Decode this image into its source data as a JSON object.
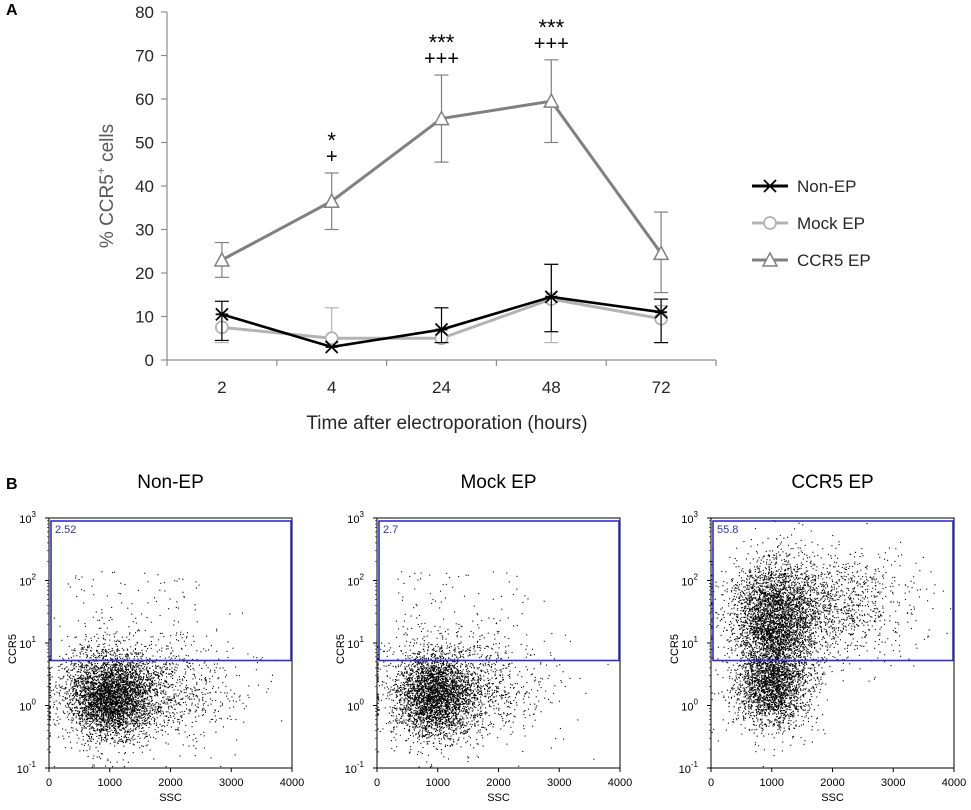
{
  "panel_a_label": "A",
  "panel_b_label": "B",
  "colors": {
    "non_ep": "#000000",
    "mock_ep": "#b3b3b3",
    "ccr5_ep": "#808080",
    "axis": "#8c8c8c",
    "gate": "#2e2ed6",
    "dots": "#000000"
  },
  "chart_data": [
    {
      "type": "line",
      "title": "",
      "xlabel": "Time after electroporation (hours)",
      "ylabel_prefix": "% CCR5",
      "ylabel_sup": "+",
      "ylabel_suffix": " cells",
      "categories": [
        "2",
        "4",
        "24",
        "48",
        "72"
      ],
      "ylim": [
        0,
        80
      ],
      "yticks": [
        0,
        10,
        20,
        30,
        40,
        50,
        60,
        70,
        80
      ],
      "grid": false,
      "legend_position": "right",
      "series": [
        {
          "name": "Non-EP",
          "marker": "asterisk",
          "color_key": "non_ep",
          "values": [
            10.5,
            3.0,
            7.0,
            14.5,
            11.0
          ],
          "error_low": [
            6.0,
            0,
            3.0,
            8.0,
            7.0
          ],
          "error_high": [
            3.0,
            0,
            5.0,
            7.5,
            3.0
          ]
        },
        {
          "name": "Mock EP",
          "marker": "circle",
          "color_key": "mock_ep",
          "values": [
            7.5,
            5.0,
            5.0,
            14.0,
            9.5
          ],
          "error_low": [
            3.5,
            1.0,
            0,
            10.0,
            5.5
          ],
          "error_high": [
            3.0,
            7.0,
            0,
            8.0,
            3.0
          ]
        },
        {
          "name": "CCR5 EP",
          "marker": "triangle",
          "color_key": "ccr5_ep",
          "values": [
            23.0,
            36.5,
            55.5,
            59.5,
            24.5
          ],
          "error_low": [
            4.0,
            6.5,
            10.0,
            9.5,
            9.0
          ],
          "error_high": [
            4.0,
            6.5,
            10.0,
            9.5,
            9.5
          ]
        }
      ],
      "annotations": [
        {
          "category": "4",
          "lines": [
            "*",
            "+"
          ]
        },
        {
          "category": "24",
          "lines": [
            "***",
            "+++"
          ]
        },
        {
          "category": "48",
          "lines": [
            "***",
            "+++"
          ]
        }
      ]
    },
    {
      "type": "scatter",
      "title": "Non-EP",
      "xlabel": "SSC",
      "ylabel": "CCR5",
      "xlim": [
        0,
        4000
      ],
      "xticks": [
        "0",
        "1000",
        "2000",
        "3000",
        "4000"
      ],
      "y_scale": "log",
      "ylim_log10": [
        -1,
        3
      ],
      "yticks_base": "10",
      "yticks_exp": [
        "-1",
        "0",
        "1",
        "2",
        "3"
      ],
      "gate": {
        "label": "2.52",
        "ssc_min": 0,
        "ssc_max": 4000,
        "ccr5_log_min": 0.72,
        "ccr5_log_max": 3
      },
      "populations": [
        {
          "n": 3400,
          "ssc_mean": 1000,
          "ssc_sd": 340,
          "log_mean": 0.15,
          "log_sd": 0.33
        },
        {
          "n": 1500,
          "ssc_mean": 1500,
          "ssc_sd": 750,
          "log_mean": 0.25,
          "log_sd": 0.42
        }
      ],
      "extra_above_gate": 100
    },
    {
      "type": "scatter",
      "title": "Mock EP",
      "xlabel": "SSC",
      "ylabel": "CCR5",
      "xlim": [
        0,
        4000
      ],
      "xticks": [
        "0",
        "1000",
        "2000",
        "3000",
        "4000"
      ],
      "y_scale": "log",
      "ylim_log10": [
        -1,
        3
      ],
      "yticks_base": "10",
      "yticks_exp": [
        "-1",
        "0",
        "1",
        "2",
        "3"
      ],
      "gate": {
        "label": "2.7",
        "ssc_min": 0,
        "ssc_max": 4000,
        "ccr5_log_min": 0.72,
        "ccr5_log_max": 3
      },
      "populations": [
        {
          "n": 2900,
          "ssc_mean": 950,
          "ssc_sd": 320,
          "log_mean": 0.18,
          "log_sd": 0.33
        },
        {
          "n": 1200,
          "ssc_mean": 1400,
          "ssc_sd": 700,
          "log_mean": 0.3,
          "log_sd": 0.42
        }
      ],
      "extra_above_gate": 110
    },
    {
      "type": "scatter",
      "title": "CCR5 EP",
      "xlabel": "SSC",
      "ylabel": "CCR5",
      "xlim": [
        0,
        4000
      ],
      "xticks": [
        "0",
        "1000",
        "2000",
        "3000",
        "4000"
      ],
      "y_scale": "log",
      "ylim_log10": [
        -1,
        3
      ],
      "yticks_base": "10",
      "yticks_exp": [
        "-1",
        "0",
        "1",
        "2",
        "3"
      ],
      "gate": {
        "label": "55.8",
        "ssc_min": 0,
        "ssc_max": 4000,
        "ccr5_log_min": 0.72,
        "ccr5_log_max": 3
      },
      "populations": [
        {
          "n": 3100,
          "ssc_mean": 1050,
          "ssc_sd": 330,
          "log_mean": 1.35,
          "log_sd": 0.45
        },
        {
          "n": 2300,
          "ssc_mean": 1000,
          "ssc_sd": 300,
          "log_mean": 0.3,
          "log_sd": 0.33
        },
        {
          "n": 1600,
          "ssc_mean": 1700,
          "ssc_sd": 750,
          "log_mean": 1.6,
          "log_sd": 0.45
        }
      ],
      "extra_above_gate": 0
    }
  ]
}
